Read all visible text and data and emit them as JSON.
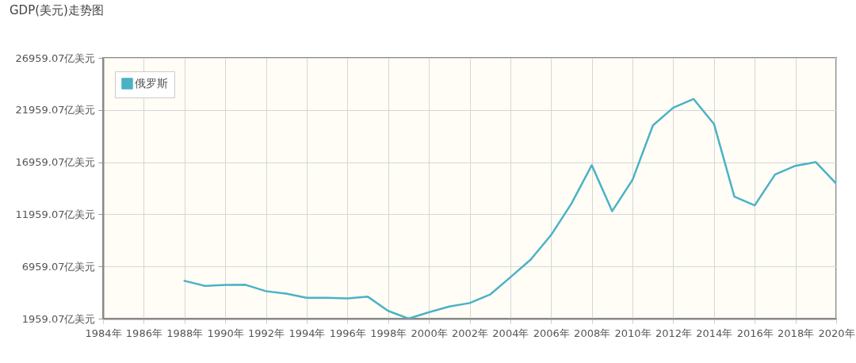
{
  "chart_data": {
    "type": "line",
    "title": "GDP(美元)走势图",
    "x": [
      1988,
      1989,
      1990,
      1991,
      1992,
      1993,
      1994,
      1995,
      1996,
      1997,
      1998,
      1999,
      2000,
      2001,
      2002,
      2003,
      2004,
      2005,
      2006,
      2007,
      2008,
      2009,
      2010,
      2011,
      2012,
      2013,
      2014,
      2015,
      2016,
      2017,
      2018,
      2019,
      2020
    ],
    "series": [
      {
        "name": "俄罗斯",
        "color": "#4bb2c5",
        "values": [
          5580,
          5100,
          5180,
          5200,
          4590,
          4350,
          3950,
          3950,
          3900,
          4060,
          2700,
          1960,
          2570,
          3120,
          3450,
          4260,
          5920,
          7620,
          9970,
          12990,
          16670,
          12260,
          15270,
          20480,
          22180,
          23010,
          20620,
          13650,
          12820,
          15780,
          16610,
          16960,
          14910
        ]
      }
    ],
    "xlim": [
      1984,
      2020
    ],
    "xticks": [
      {
        "value": 1984,
        "label": "1984年"
      },
      {
        "value": 1986,
        "label": "1986年"
      },
      {
        "value": 1988,
        "label": "1988年"
      },
      {
        "value": 1990,
        "label": "1990年"
      },
      {
        "value": 1992,
        "label": "1992年"
      },
      {
        "value": 1994,
        "label": "1994年"
      },
      {
        "value": 1996,
        "label": "1996年"
      },
      {
        "value": 1998,
        "label": "1998年"
      },
      {
        "value": 2000,
        "label": "2000年"
      },
      {
        "value": 2002,
        "label": "2002年"
      },
      {
        "value": 2004,
        "label": "2004年"
      },
      {
        "value": 2006,
        "label": "2006年"
      },
      {
        "value": 2008,
        "label": "2008年"
      },
      {
        "value": 2010,
        "label": "2010年"
      },
      {
        "value": 2012,
        "label": "2012年"
      },
      {
        "value": 2014,
        "label": "2014年"
      },
      {
        "value": 2016,
        "label": "2016年"
      },
      {
        "value": 2018,
        "label": "2018年"
      },
      {
        "value": 2020,
        "label": "2020年"
      }
    ],
    "ylim": [
      1959.07,
      26959.07
    ],
    "yticks": [
      {
        "value": 1959.07,
        "label": "1959.07亿美元"
      },
      {
        "value": 6959.07,
        "label": "6959.07亿美元"
      },
      {
        "value": 11959.07,
        "label": "11959.07亿美元"
      },
      {
        "value": 16959.07,
        "label": "16959.07亿美元"
      },
      {
        "value": 21959.07,
        "label": "21959.07亿美元"
      },
      {
        "value": 26959.07,
        "label": "26959.07亿美元"
      }
    ],
    "grid": true,
    "legend": "top left",
    "marker": "none",
    "line_style": "solid"
  }
}
